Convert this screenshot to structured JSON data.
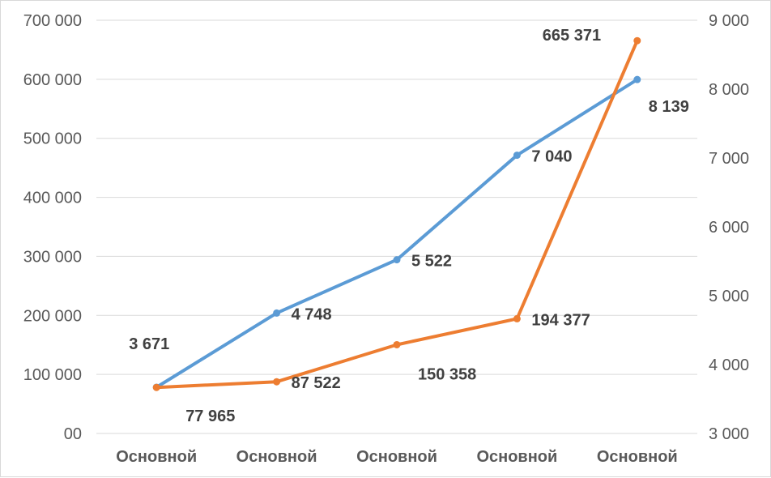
{
  "chart_data": {
    "type": "line",
    "title": "",
    "xlabel": "",
    "ylabel": "",
    "categories": [
      "Основной",
      "Основной",
      "Основной",
      "Основной",
      "Основной"
    ],
    "series": [
      {
        "axis": "right",
        "color": "#5b9bd5",
        "values": [
          3671,
          4748,
          5522,
          7040,
          8139
        ],
        "labels": [
          "3 671",
          "4 748",
          "5 522",
          "7 040",
          "8 139"
        ]
      },
      {
        "axis": "left",
        "color": "#ed7d31",
        "values": [
          77965,
          87522,
          150358,
          194377,
          665371
        ],
        "labels": [
          "77 965",
          "87 522",
          "150 358",
          "194 377",
          "665 371"
        ]
      }
    ],
    "y_left": {
      "ylim": [
        0,
        700000
      ],
      "ticks": [
        0,
        100000,
        200000,
        300000,
        400000,
        500000,
        600000,
        700000
      ],
      "tick_labels": [
        "00",
        "100 000",
        "200 000",
        "300 000",
        "400 000",
        "500 000",
        "600 000",
        "700 000"
      ]
    },
    "y_right": {
      "ylim": [
        3000,
        9000
      ],
      "ticks": [
        3000,
        4000,
        5000,
        6000,
        7000,
        8000,
        9000
      ],
      "tick_labels": [
        "3 000",
        "4 000",
        "5 000",
        "6 000",
        "7 000",
        "8 000",
        "9 000"
      ]
    },
    "grid": true,
    "legend": "none"
  }
}
